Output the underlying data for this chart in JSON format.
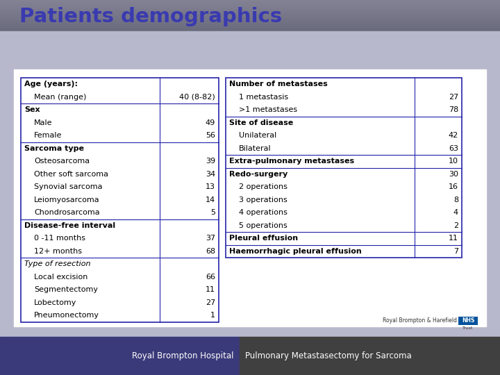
{
  "title": "Patients demographics",
  "title_color": "#3a3ab0",
  "bg_top_color": "#7a7a90",
  "bg_main_color": "#b8b8cc",
  "white_area_color": "#f0f0f0",
  "border_color": "#2222aa",
  "footer_bg_left": "#3a3a7a",
  "footer_bg_right": "#404040",
  "footer_left_text": "Royal Brompton Hospital",
  "footer_right_text": "Pulmonary Metastasectomy for Sarcoma",
  "left_table": {
    "rows": [
      {
        "label": "Age (years):",
        "value": "",
        "bold": true,
        "indent": 0
      },
      {
        "label": "Mean (range)",
        "value": "40 (8-82)",
        "bold": false,
        "indent": 1
      },
      {
        "label": "Sex",
        "value": "",
        "bold": true,
        "indent": 0
      },
      {
        "label": "Male",
        "value": "49",
        "bold": false,
        "indent": 1
      },
      {
        "label": "Female",
        "value": "56",
        "bold": false,
        "indent": 1
      },
      {
        "label": "Sarcoma type",
        "value": "",
        "bold": true,
        "indent": 0
      },
      {
        "label": "Osteosarcoma",
        "value": "39",
        "bold": false,
        "indent": 1
      },
      {
        "label": "Other soft sarcoma",
        "value": "34",
        "bold": false,
        "indent": 1
      },
      {
        "label": "Synovial sarcoma",
        "value": "13",
        "bold": false,
        "indent": 1
      },
      {
        "label": "Leiomyosarcoma",
        "value": "14",
        "bold": false,
        "indent": 1
      },
      {
        "label": "Chondrosarcoma",
        "value": "5",
        "bold": false,
        "indent": 1
      },
      {
        "label": "Disease-free interval",
        "value": "",
        "bold": true,
        "indent": 0
      },
      {
        "label": "0 -11 months",
        "value": "37",
        "bold": false,
        "indent": 1
      },
      {
        "label": "12+ months",
        "value": "68",
        "bold": false,
        "indent": 1
      },
      {
        "label": "Type of resection",
        "value": "",
        "bold": false,
        "indent": 0,
        "italic": true
      },
      {
        "label": "Local excision",
        "value": "66",
        "bold": false,
        "indent": 1
      },
      {
        "label": "Segmentectomy",
        "value": "11",
        "bold": false,
        "indent": 1
      },
      {
        "label": "Lobectomy",
        "value": "27",
        "bold": false,
        "indent": 1
      },
      {
        "label": "Pneumonectomy",
        "value": "1",
        "bold": false,
        "indent": 1
      }
    ],
    "section_breaks": [
      2,
      5,
      11,
      14
    ]
  },
  "right_table": {
    "rows": [
      {
        "label": "Number of metastases",
        "value": "",
        "bold": true,
        "indent": 0
      },
      {
        "label": "1 metastasis",
        "value": "27",
        "bold": false,
        "indent": 1
      },
      {
        "label": ">1 metastases",
        "value": "78",
        "bold": false,
        "indent": 1
      },
      {
        "label": "Site of disease",
        "value": "",
        "bold": true,
        "indent": 0
      },
      {
        "label": "Unilateral",
        "value": "42",
        "bold": false,
        "indent": 1
      },
      {
        "label": "Bilateral",
        "value": "63",
        "bold": false,
        "indent": 1
      },
      {
        "label": "Extra-pulmonary metastases",
        "value": "10",
        "bold": true,
        "indent": 0
      },
      {
        "label": "Redo-surgery",
        "value": "30",
        "bold": true,
        "indent": 0
      },
      {
        "label": "2 operations",
        "value": "16",
        "bold": false,
        "indent": 1
      },
      {
        "label": "3 operations",
        "value": "8",
        "bold": false,
        "indent": 1
      },
      {
        "label": "4 operations",
        "value": "4",
        "bold": false,
        "indent": 1
      },
      {
        "label": "5 operations",
        "value": "2",
        "bold": false,
        "indent": 1
      },
      {
        "label": "Pleural effusion",
        "value": "11",
        "bold": true,
        "indent": 0
      },
      {
        "label": "Haemorrhagic pleural effusion",
        "value": "7",
        "bold": true,
        "indent": 0
      }
    ],
    "section_breaks": [
      3,
      6,
      7,
      12,
      13
    ]
  }
}
